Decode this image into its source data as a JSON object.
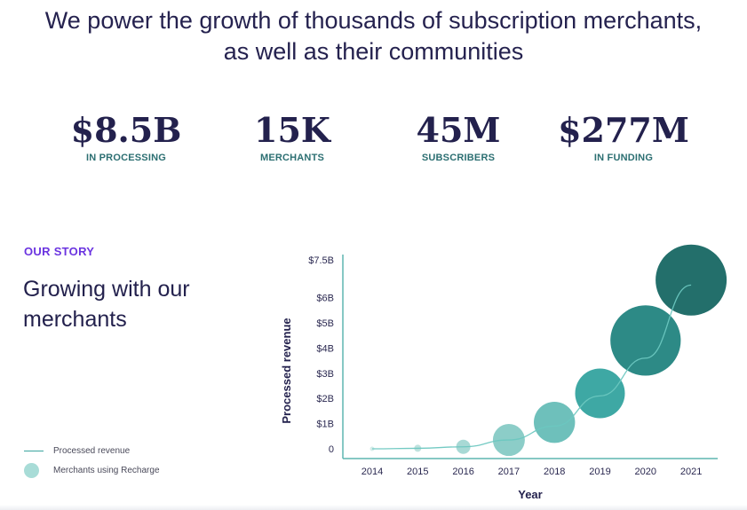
{
  "headline": {
    "line1": "We power the growth of thousands of subscription merchants,",
    "line2": "as well as their communities"
  },
  "stats": [
    {
      "value": "$8.5B",
      "label": "IN PROCESSING"
    },
    {
      "value": "15K",
      "label": "MERCHANTS"
    },
    {
      "value": "45M",
      "label": "SUBSCRIBERS"
    },
    {
      "value": "$277M",
      "label": "IN FUNDING"
    }
  ],
  "story": {
    "label": "OUR STORY",
    "title": "Growing with our merchants"
  },
  "legend": {
    "line_label": "Processed revenue",
    "dot_label": "Merchants using Recharge"
  },
  "colors": {
    "line": "#6cc7c0",
    "bubbles": [
      "#d5ece9",
      "#bfe2de",
      "#a8d9d5",
      "#8ccdc8",
      "#6ec0bb",
      "#3ea8a4",
      "#2d8a86",
      "#236f6b"
    ]
  },
  "chart_data": {
    "type": "scatter",
    "x": [
      "2014",
      "2015",
      "2016",
      "2017",
      "2018",
      "2019",
      "2020",
      "2021"
    ],
    "xlabel": "Year",
    "ylabel": "Processed revenue",
    "yticks": [
      "0",
      "$1B",
      "$2B",
      "$3B",
      "$4B",
      "$5B",
      "$6B",
      "$7.5B"
    ],
    "ylim": [
      0,
      7.5
    ],
    "grid": false,
    "series": [
      {
        "name": "Processed revenue",
        "kind": "line",
        "values": [
          0.0,
          0.02,
          0.08,
          0.35,
          0.9,
          2.1,
          3.6,
          6.5
        ]
      },
      {
        "name": "Merchants using Recharge",
        "kind": "bubble",
        "values": [
          0.0,
          0.02,
          0.08,
          0.35,
          1.05,
          2.2,
          4.3,
          6.7
        ],
        "relative_size": [
          0.06,
          0.1,
          0.2,
          0.45,
          0.58,
          0.7,
          0.99,
          1.0
        ]
      }
    ]
  }
}
